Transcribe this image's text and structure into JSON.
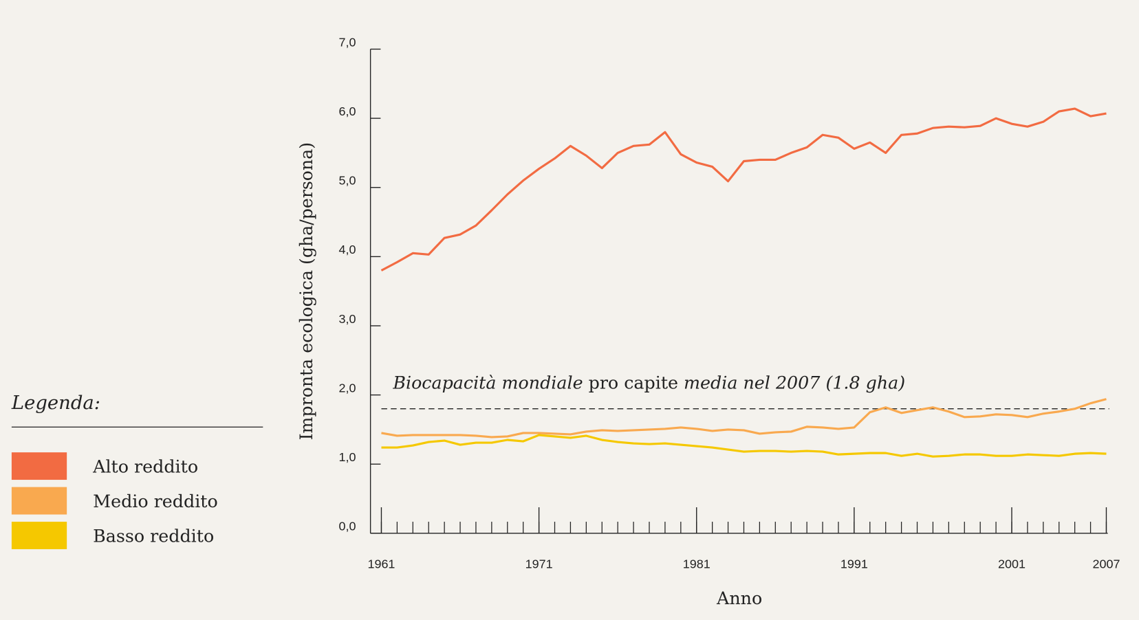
{
  "chart_data": {
    "type": "line",
    "y_label": "Impronta ecologica (gha/persona)",
    "x_label": "Anno",
    "x": [
      1961,
      1962,
      1963,
      1964,
      1965,
      1966,
      1967,
      1968,
      1969,
      1970,
      1971,
      1972,
      1973,
      1974,
      1975,
      1976,
      1977,
      1978,
      1979,
      1980,
      1981,
      1982,
      1983,
      1984,
      1985,
      1986,
      1987,
      1988,
      1989,
      1990,
      1991,
      1992,
      1993,
      1994,
      1995,
      1996,
      1997,
      1998,
      1999,
      2000,
      2001,
      2002,
      2003,
      2004,
      2005,
      2006,
      2007
    ],
    "series": [
      {
        "name": "Alto reddito",
        "color": "#f26b42",
        "values": [
          3.8,
          3.92,
          4.05,
          4.03,
          4.27,
          4.32,
          4.45,
          4.67,
          4.9,
          5.1,
          5.27,
          5.42,
          5.6,
          5.46,
          5.28,
          5.5,
          5.6,
          5.62,
          5.8,
          5.48,
          5.36,
          5.3,
          5.09,
          5.38,
          5.4,
          5.4,
          5.5,
          5.58,
          5.76,
          5.72,
          5.56,
          5.65,
          5.5,
          5.76,
          5.78,
          5.86,
          5.88,
          5.87,
          5.89,
          6.0,
          5.92,
          5.88,
          5.95,
          6.1,
          6.14,
          6.03,
          6.07
        ]
      },
      {
        "name": "Medio reddito",
        "color": "#f9a94f",
        "values": [
          1.45,
          1.41,
          1.42,
          1.42,
          1.42,
          1.42,
          1.41,
          1.39,
          1.4,
          1.45,
          1.45,
          1.44,
          1.43,
          1.47,
          1.49,
          1.48,
          1.49,
          1.5,
          1.51,
          1.53,
          1.51,
          1.48,
          1.5,
          1.49,
          1.44,
          1.46,
          1.47,
          1.54,
          1.53,
          1.51,
          1.53,
          1.75,
          1.82,
          1.74,
          1.78,
          1.82,
          1.76,
          1.68,
          1.69,
          1.72,
          1.71,
          1.68,
          1.73,
          1.76,
          1.8,
          1.88,
          1.94
        ]
      },
      {
        "name": "Basso reddito",
        "color": "#f5c800",
        "values": [
          1.24,
          1.24,
          1.27,
          1.32,
          1.34,
          1.28,
          1.31,
          1.31,
          1.35,
          1.33,
          1.42,
          1.4,
          1.38,
          1.41,
          1.35,
          1.32,
          1.3,
          1.29,
          1.3,
          1.28,
          1.26,
          1.24,
          1.21,
          1.18,
          1.19,
          1.19,
          1.18,
          1.19,
          1.18,
          1.14,
          1.15,
          1.16,
          1.16,
          1.12,
          1.15,
          1.11,
          1.12,
          1.14,
          1.14,
          1.12,
          1.12,
          1.14,
          1.13,
          1.12,
          1.15,
          1.16,
          1.15
        ]
      }
    ],
    "xlim": [
      1961,
      2007
    ],
    "xticks": [
      1961,
      1971,
      1981,
      1991,
      2001,
      2007
    ],
    "ylim": [
      0,
      7
    ],
    "yticks": [
      {
        "value": 0,
        "label": "0,0"
      },
      {
        "value": 1,
        "label": "1,0"
      },
      {
        "value": 2,
        "label": "2,0"
      },
      {
        "value": 3,
        "label": "3,0"
      },
      {
        "value": 4,
        "label": "4,0"
      },
      {
        "value": 5,
        "label": "5,0"
      },
      {
        "value": 6,
        "label": "6,0"
      },
      {
        "value": 7,
        "label": "7,0"
      }
    ],
    "reference_line": {
      "value": 1.8,
      "parts": [
        "Biocapacità mondiale",
        " pro capite ",
        "media nel 2007 (1.8 gha)"
      ]
    },
    "legend": {
      "title": "Legenda:",
      "position": "left"
    }
  }
}
